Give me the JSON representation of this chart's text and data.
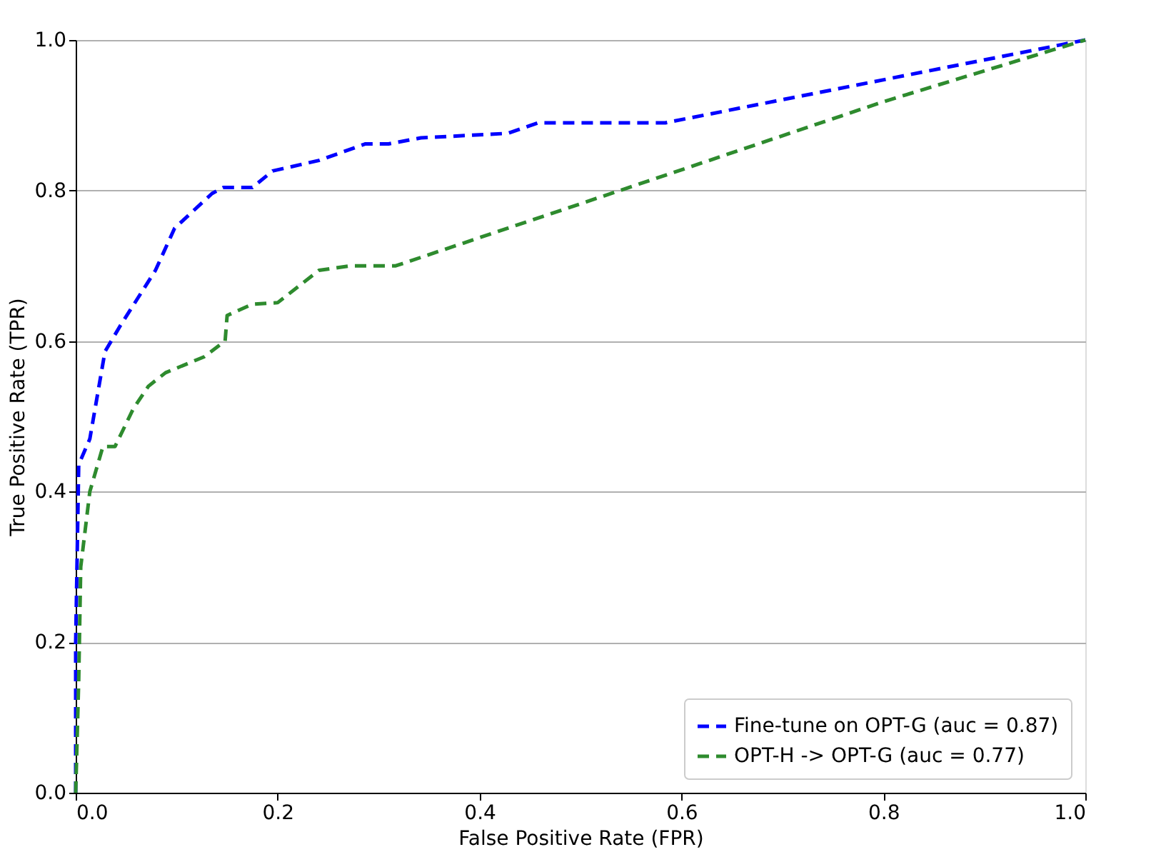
{
  "chart_data": {
    "type": "line",
    "xlabel": "False Positive Rate (FPR)",
    "ylabel": "True Positive Rate (TPR)",
    "xlim": [
      0,
      1
    ],
    "ylim": [
      0,
      1
    ],
    "xticks": [
      {
        "value": 0,
        "label": "0.0"
      },
      0.2,
      0.4,
      0.6,
      0.8,
      {
        "value": 1,
        "label": "1.0"
      }
    ],
    "yticks": [
      {
        "value": 0,
        "label": "0.0"
      },
      0.2,
      0.4,
      0.6,
      0.8,
      {
        "value": 1,
        "label": "1.0"
      }
    ],
    "grid": "y",
    "legend": "bottom right",
    "line_style": "dashed",
    "marker": "none",
    "series": [
      {
        "name": "Fine-tune on OPT-G (auc = 0.87)",
        "color": "#0000ff",
        "x": [
          0,
          0,
          0.003,
          0.014,
          0.029,
          0.044,
          0.079,
          0.098,
          0.135,
          0.146,
          0.175,
          0.195,
          0.241,
          0.287,
          0.31,
          0.342,
          0.428,
          0.458,
          0.584,
          1
        ],
        "values": [
          0,
          0.2,
          0.436,
          0.47,
          0.586,
          0.62,
          0.694,
          0.75,
          0.796,
          0.804,
          0.804,
          0.826,
          0.84,
          0.862,
          0.862,
          0.87,
          0.876,
          0.89,
          0.89,
          1
        ]
      },
      {
        "name": "OPT-H -> OPT-G (auc = 0.77)",
        "color": "#2e8b2e",
        "x": [
          0,
          0.003,
          0.005,
          0.014,
          0.027,
          0.039,
          0.057,
          0.072,
          0.089,
          0.127,
          0.148,
          0.15,
          0.175,
          0.2,
          0.241,
          0.272,
          0.317,
          0.539,
          0.8,
          1
        ],
        "values": [
          0,
          0.15,
          0.3,
          0.4,
          0.46,
          0.46,
          0.51,
          0.54,
          0.558,
          0.579,
          0.6,
          0.634,
          0.649,
          0.651,
          0.694,
          0.7,
          0.7,
          0.8,
          0.918,
          1
        ]
      }
    ]
  }
}
